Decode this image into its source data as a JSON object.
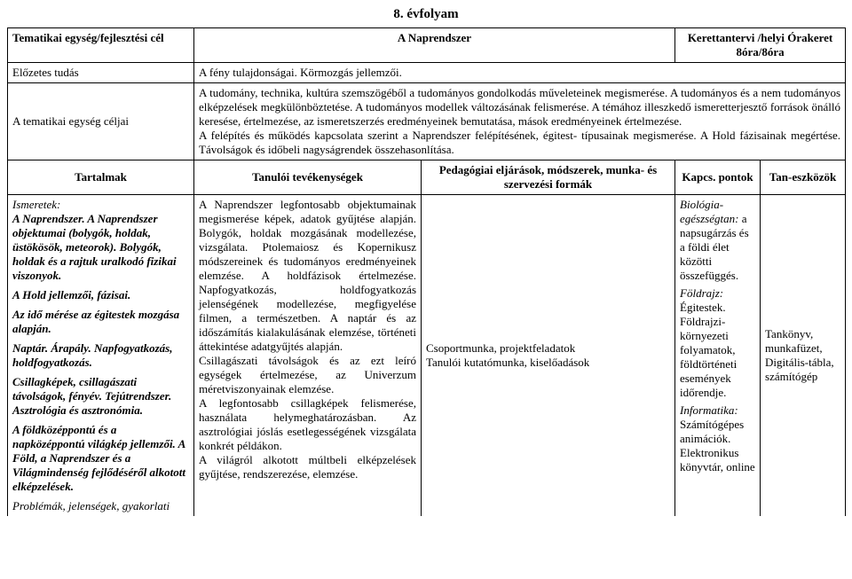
{
  "title": "8. évfolyam",
  "row1": {
    "c1": "Tematikai egység/fejlesztési cél",
    "c2": "A Naprendszer",
    "c3": "Kerettantervi /helyi Órakeret\n8óra/8óra"
  },
  "row2": {
    "c1": "Előzetes tudás",
    "c2": "A fény tulajdonságai. Körmozgás jellemzői."
  },
  "row3": {
    "c1": "A tematikai egység céljai",
    "c2": "A tudomány, technika, kultúra szemszögéből a tudományos gondolkodás műveleteinek megismerése. A tudományos és a nem tudományos elképzelések megkülönböztetése. A tudományos modellek változásának felismerése. A témához illeszkedő ismeretterjesztő források önálló keresése, értelmezése, az ismeretszerzés eredményeinek bemutatása, mások eredményeinek értelmezése.\nA felépítés és működés kapcsolata szerint a Naprendszer felépítésének, égitest- típusainak megismerése. A Hold fázisainak megértése. Távolságok és időbeli nagyságrendek összehasonlítása."
  },
  "header2": {
    "c1": "Tartalmak",
    "c2": "Tanulói tevékenységek",
    "c3": "Pedagógiai eljárások, módszerek, munka- és szervezési formák",
    "c4": "Kapcs. pontok",
    "c5": "Tan-eszközök"
  },
  "body": {
    "tartalmak": {
      "p1_label": "Ismeretek:",
      "p1": "A Naprendszer. A Naprendszer objektumai (bolygók, holdak, üstökösök, meteorok). Bolygók, holdak és a rajtuk uralkodó fizikai viszonyok.",
      "p2": "A Hold jellemzői, fázisai.",
      "p3": "Az idő mérése az égitestek mozgása alapján.",
      "p4": "Naptár. Árapály. Napfogyatkozás, holdfogyatkozás.",
      "p5": "Csillagképek, csillagászati távolságok, fényév. Tejútrendszer. Asztrológia és asztronómia.",
      "p6": "A földközéppontú és a napközéppontú világkép jellemzői. A Föld, a Naprendszer és a Világmindenség fejlődéséről alkotott elképzelések.",
      "p7": "Problémák, jelenségek, gyakorlati"
    },
    "tevekenysegek": "A Naprendszer legfontosabb objektumainak megismerése képek, adatok gyűjtése alapján. Bolygók, holdak mozgásának modellezése, vizsgálata. Ptolemaiosz és Kopernikusz módszereinek és tudományos eredményeinek elemzése. A holdfázisok értelmezése. Napfogyatkozás, holdfogyatkozás jelenségének modellezése, megfigyelése filmen, a természetben. A naptár és az időszámítás kialakulásának elemzése, történeti áttekintése adatgyűjtés alapján.\nCsillagászati távolságok és az ezt leíró egységek értelmezése, az Univerzum méretviszonyainak elemzése.\nA legfontosabb csillagképek felismerése, használata helymeghatározásban. Az asztrológiai jóslás esetlegességének vizsgálata konkrét példákon.\nA világról alkotott múltbeli elképzelések gyűjtése, rendszerezése, elemzése.",
    "modszerek": "Csoportmunka, projektfeladatok\nTanulói kutatómunka, kiselőadások",
    "kapcs": {
      "p1a": "Biológia-egészségtan:",
      "p1b": " a napsugárzás és a földi élet közötti összefüggés.",
      "p2a": "Földrajz:",
      "p2b": " Égitestek. Földrajzi-környezeti folyamatok, földtörténeti események időrendje.",
      "p3a": "Informatika:",
      "p3b": " Számítógépes animációk. Elektronikus könyvtár, online"
    },
    "eszkozok": "Tankönyv, munkafüzet, Digitális-tábla, számítógép"
  },
  "widths": {
    "c1": 210,
    "c2": 256,
    "c3": 166,
    "c4": 120,
    "c5": 96,
    "c6": 96
  }
}
